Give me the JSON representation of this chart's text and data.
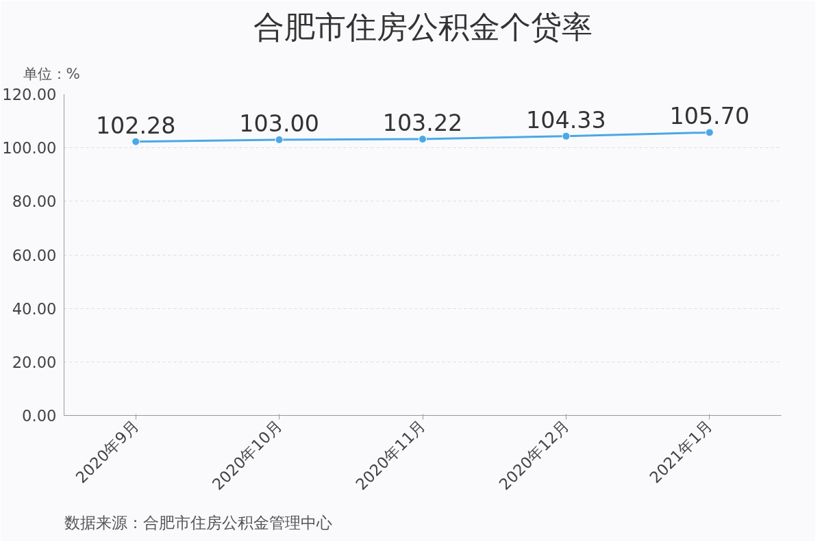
{
  "chart_data": {
    "type": "line",
    "title": "合肥市住房公积金个贷率",
    "ylabel": "单位：%",
    "annotations": [
      "数据来源：合肥市住房公积金管理中心"
    ],
    "categories": [
      "2020年9月",
      "2020年10月",
      "2020年11月",
      "2020年12月",
      "2021年1月"
    ],
    "values": [
      102.28,
      103.0,
      103.22,
      104.33,
      105.7
    ],
    "value_labels": [
      "102.28",
      "103.00",
      "103.22",
      "104.33",
      "105.70"
    ],
    "color": "#4aa8e8",
    "marker": "circle",
    "line_style": "solid",
    "ylim": [
      0,
      120
    ],
    "yticks": [
      {
        "value": 0,
        "label": "0.00"
      },
      {
        "value": 20,
        "label": "20.00"
      },
      {
        "value": 40,
        "label": "40.00"
      },
      {
        "value": 60,
        "label": "60.00"
      },
      {
        "value": 80,
        "label": "80.00"
      },
      {
        "value": 100,
        "label": "100.00"
      },
      {
        "value": 120,
        "label": "120.00"
      }
    ],
    "grid": "y"
  }
}
